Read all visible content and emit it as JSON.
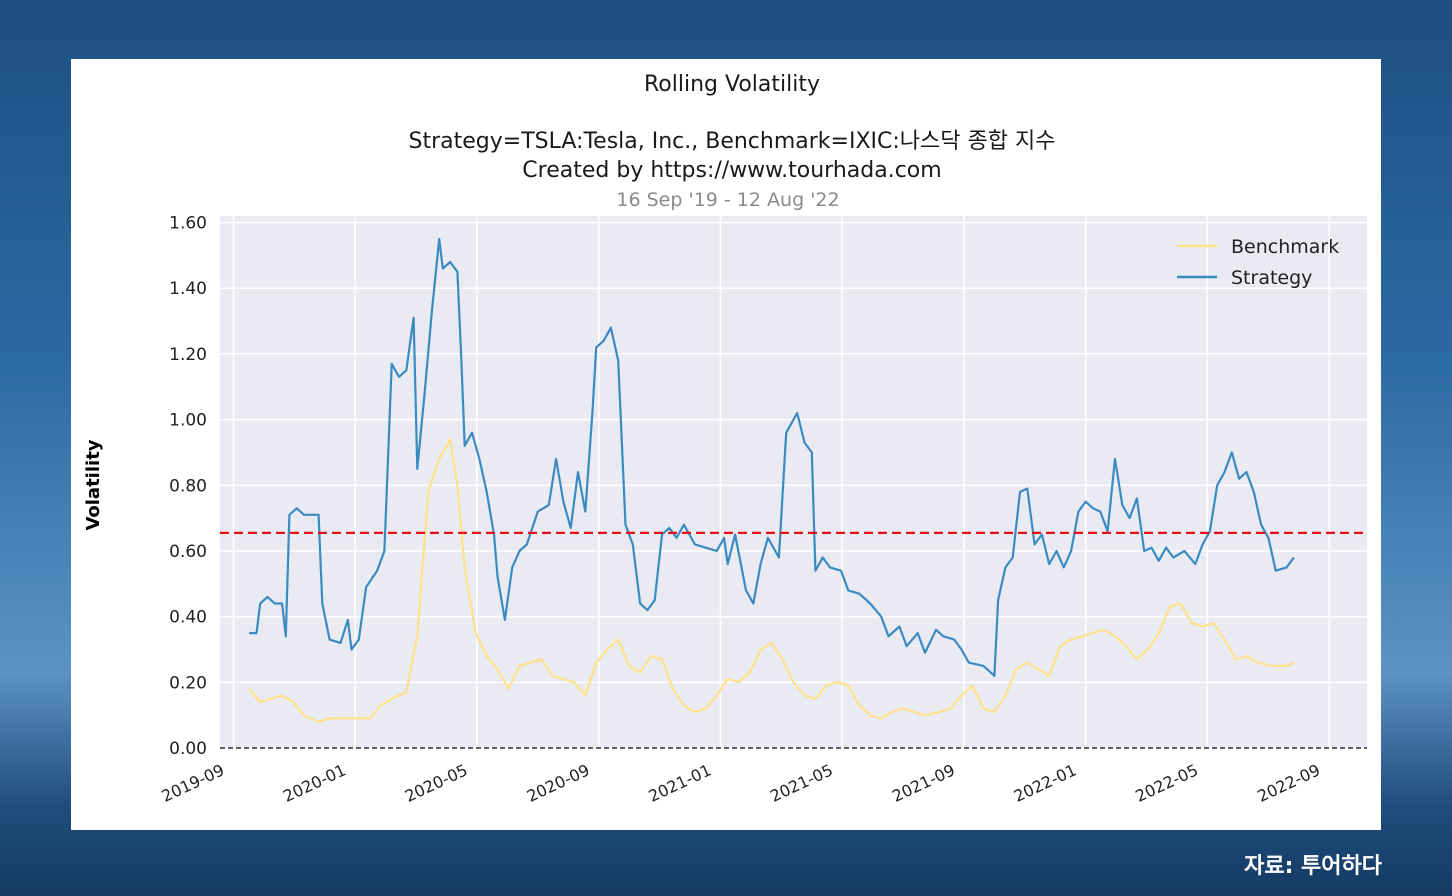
{
  "source_label": "자료: 투어하다",
  "colors": {
    "background_top": "#1d4f83",
    "panel": "#ffffff",
    "plot_bg": "#eaeaf2",
    "benchmark": "#fde18b",
    "strategy": "#3b8bc2",
    "mean_line": "#e8101a"
  },
  "chart_data": {
    "type": "line",
    "title": "Rolling Volatility",
    "subtitle_lines": [
      "Strategy=TSLA:Tesla, Inc., Benchmark=IXIC:나스닥 종합 지수",
      "Created by https://www.tourhada.com"
    ],
    "date_range": "16 Sep '19 - 12 Aug '22",
    "ylabel": "Volatility",
    "xlabel": "",
    "ylim": [
      0,
      1.62
    ],
    "xlim": [
      2019.63,
      2022.77
    ],
    "yticks": [
      "0.00",
      "0.20",
      "0.40",
      "0.60",
      "0.80",
      "1.00",
      "1.20",
      "1.40",
      "1.60"
    ],
    "xticks": [
      {
        "label": "2019-09",
        "x": 2019.667
      },
      {
        "label": "2020-01",
        "x": 2020.0
      },
      {
        "label": "2020-05",
        "x": 2020.333
      },
      {
        "label": "2020-09",
        "x": 2020.667
      },
      {
        "label": "2021-01",
        "x": 2021.0
      },
      {
        "label": "2021-05",
        "x": 2021.333
      },
      {
        "label": "2021-09",
        "x": 2021.667
      },
      {
        "label": "2022-01",
        "x": 2022.0
      },
      {
        "label": "2022-05",
        "x": 2022.333
      },
      {
        "label": "2022-09",
        "x": 2022.667
      }
    ],
    "mean_line": 0.655,
    "zero_line": 0.0,
    "legend": {
      "position": "top-right",
      "entries": [
        "Benchmark",
        "Strategy"
      ]
    },
    "series": [
      {
        "name": "Strategy",
        "points": [
          [
            2019.71,
            0.35
          ],
          [
            2019.73,
            0.35
          ],
          [
            2019.74,
            0.44
          ],
          [
            2019.76,
            0.46
          ],
          [
            2019.78,
            0.44
          ],
          [
            2019.8,
            0.44
          ],
          [
            2019.81,
            0.34
          ],
          [
            2019.82,
            0.71
          ],
          [
            2019.84,
            0.73
          ],
          [
            2019.86,
            0.71
          ],
          [
            2019.9,
            0.71
          ],
          [
            2019.91,
            0.44
          ],
          [
            2019.93,
            0.33
          ],
          [
            2019.96,
            0.32
          ],
          [
            2019.98,
            0.39
          ],
          [
            2019.99,
            0.3
          ],
          [
            2020.01,
            0.33
          ],
          [
            2020.03,
            0.49
          ],
          [
            2020.06,
            0.54
          ],
          [
            2020.08,
            0.6
          ],
          [
            2020.1,
            1.17
          ],
          [
            2020.12,
            1.13
          ],
          [
            2020.14,
            1.15
          ],
          [
            2020.16,
            1.31
          ],
          [
            2020.17,
            0.85
          ],
          [
            2020.19,
            1.08
          ],
          [
            2020.21,
            1.33
          ],
          [
            2020.23,
            1.55
          ],
          [
            2020.24,
            1.46
          ],
          [
            2020.26,
            1.48
          ],
          [
            2020.28,
            1.45
          ],
          [
            2020.29,
            1.2
          ],
          [
            2020.3,
            0.92
          ],
          [
            2020.32,
            0.96
          ],
          [
            2020.34,
            0.88
          ],
          [
            2020.36,
            0.78
          ],
          [
            2020.38,
            0.65
          ],
          [
            2020.39,
            0.52
          ],
          [
            2020.41,
            0.39
          ],
          [
            2020.43,
            0.55
          ],
          [
            2020.45,
            0.6
          ],
          [
            2020.47,
            0.62
          ],
          [
            2020.5,
            0.72
          ],
          [
            2020.53,
            0.74
          ],
          [
            2020.55,
            0.88
          ],
          [
            2020.57,
            0.75
          ],
          [
            2020.59,
            0.67
          ],
          [
            2020.61,
            0.84
          ],
          [
            2020.63,
            0.72
          ],
          [
            2020.65,
            1.03
          ],
          [
            2020.66,
            1.22
          ],
          [
            2020.68,
            1.24
          ],
          [
            2020.7,
            1.28
          ],
          [
            2020.72,
            1.18
          ],
          [
            2020.74,
            0.68
          ],
          [
            2020.76,
            0.62
          ],
          [
            2020.78,
            0.44
          ],
          [
            2020.8,
            0.42
          ],
          [
            2020.82,
            0.45
          ],
          [
            2020.84,
            0.65
          ],
          [
            2020.86,
            0.67
          ],
          [
            2020.88,
            0.64
          ],
          [
            2020.9,
            0.68
          ],
          [
            2020.93,
            0.62
          ],
          [
            2020.96,
            0.61
          ],
          [
            2020.99,
            0.6
          ],
          [
            2021.01,
            0.64
          ],
          [
            2021.02,
            0.56
          ],
          [
            2021.04,
            0.65
          ],
          [
            2021.07,
            0.48
          ],
          [
            2021.09,
            0.44
          ],
          [
            2021.11,
            0.56
          ],
          [
            2021.13,
            0.64
          ],
          [
            2021.16,
            0.58
          ],
          [
            2021.18,
            0.96
          ],
          [
            2021.21,
            1.02
          ],
          [
            2021.23,
            0.93
          ],
          [
            2021.25,
            0.9
          ],
          [
            2021.26,
            0.54
          ],
          [
            2021.28,
            0.58
          ],
          [
            2021.3,
            0.55
          ],
          [
            2021.33,
            0.54
          ],
          [
            2021.35,
            0.48
          ],
          [
            2021.38,
            0.47
          ],
          [
            2021.41,
            0.44
          ],
          [
            2021.44,
            0.4
          ],
          [
            2021.46,
            0.34
          ],
          [
            2021.49,
            0.37
          ],
          [
            2021.51,
            0.31
          ],
          [
            2021.54,
            0.35
          ],
          [
            2021.56,
            0.29
          ],
          [
            2021.59,
            0.36
          ],
          [
            2021.61,
            0.34
          ],
          [
            2021.64,
            0.33
          ],
          [
            2021.66,
            0.3
          ],
          [
            2021.68,
            0.26
          ],
          [
            2021.72,
            0.25
          ],
          [
            2021.75,
            0.22
          ],
          [
            2021.76,
            0.45
          ],
          [
            2021.78,
            0.55
          ],
          [
            2021.8,
            0.58
          ],
          [
            2021.82,
            0.78
          ],
          [
            2021.84,
            0.79
          ],
          [
            2021.86,
            0.62
          ],
          [
            2021.88,
            0.65
          ],
          [
            2021.9,
            0.56
          ],
          [
            2021.92,
            0.6
          ],
          [
            2021.94,
            0.55
          ],
          [
            2021.96,
            0.6
          ],
          [
            2021.98,
            0.72
          ],
          [
            2022.0,
            0.75
          ],
          [
            2022.02,
            0.73
          ],
          [
            2022.04,
            0.72
          ],
          [
            2022.06,
            0.66
          ],
          [
            2022.08,
            0.88
          ],
          [
            2022.1,
            0.74
          ],
          [
            2022.12,
            0.7
          ],
          [
            2022.14,
            0.76
          ],
          [
            2022.16,
            0.6
          ],
          [
            2022.18,
            0.61
          ],
          [
            2022.2,
            0.57
          ],
          [
            2022.22,
            0.61
          ],
          [
            2022.24,
            0.58
          ],
          [
            2022.27,
            0.6
          ],
          [
            2022.3,
            0.56
          ],
          [
            2022.32,
            0.62
          ],
          [
            2022.34,
            0.66
          ],
          [
            2022.36,
            0.8
          ],
          [
            2022.38,
            0.84
          ],
          [
            2022.4,
            0.9
          ],
          [
            2022.42,
            0.82
          ],
          [
            2022.44,
            0.84
          ],
          [
            2022.46,
            0.78
          ],
          [
            2022.48,
            0.68
          ],
          [
            2022.5,
            0.64
          ],
          [
            2022.52,
            0.54
          ],
          [
            2022.55,
            0.55
          ],
          [
            2022.57,
            0.58
          ]
        ]
      },
      {
        "name": "Benchmark",
        "points": [
          [
            2019.71,
            0.18
          ],
          [
            2019.74,
            0.14
          ],
          [
            2019.77,
            0.15
          ],
          [
            2019.8,
            0.16
          ],
          [
            2019.83,
            0.14
          ],
          [
            2019.86,
            0.1
          ],
          [
            2019.9,
            0.08
          ],
          [
            2019.93,
            0.09
          ],
          [
            2019.96,
            0.09
          ],
          [
            2020.0,
            0.09
          ],
          [
            2020.04,
            0.09
          ],
          [
            2020.07,
            0.13
          ],
          [
            2020.1,
            0.15
          ],
          [
            2020.14,
            0.17
          ],
          [
            2020.17,
            0.34
          ],
          [
            2020.2,
            0.78
          ],
          [
            2020.23,
            0.88
          ],
          [
            2020.26,
            0.94
          ],
          [
            2020.28,
            0.8
          ],
          [
            2020.3,
            0.55
          ],
          [
            2020.33,
            0.35
          ],
          [
            2020.36,
            0.28
          ],
          [
            2020.39,
            0.24
          ],
          [
            2020.42,
            0.18
          ],
          [
            2020.45,
            0.25
          ],
          [
            2020.48,
            0.26
          ],
          [
            2020.51,
            0.27
          ],
          [
            2020.54,
            0.22
          ],
          [
            2020.57,
            0.21
          ],
          [
            2020.6,
            0.2
          ],
          [
            2020.63,
            0.16
          ],
          [
            2020.66,
            0.26
          ],
          [
            2020.69,
            0.3
          ],
          [
            2020.72,
            0.33
          ],
          [
            2020.75,
            0.25
          ],
          [
            2020.78,
            0.23
          ],
          [
            2020.81,
            0.28
          ],
          [
            2020.84,
            0.27
          ],
          [
            2020.87,
            0.18
          ],
          [
            2020.9,
            0.13
          ],
          [
            2020.93,
            0.11
          ],
          [
            2020.96,
            0.12
          ],
          [
            2020.99,
            0.16
          ],
          [
            2021.02,
            0.21
          ],
          [
            2021.05,
            0.2
          ],
          [
            2021.08,
            0.23
          ],
          [
            2021.11,
            0.3
          ],
          [
            2021.14,
            0.32
          ],
          [
            2021.17,
            0.27
          ],
          [
            2021.2,
            0.2
          ],
          [
            2021.23,
            0.16
          ],
          [
            2021.26,
            0.15
          ],
          [
            2021.29,
            0.19
          ],
          [
            2021.32,
            0.2
          ],
          [
            2021.35,
            0.19
          ],
          [
            2021.38,
            0.13
          ],
          [
            2021.41,
            0.1
          ],
          [
            2021.44,
            0.09
          ],
          [
            2021.47,
            0.11
          ],
          [
            2021.5,
            0.12
          ],
          [
            2021.53,
            0.11
          ],
          [
            2021.56,
            0.1
          ],
          [
            2021.6,
            0.11
          ],
          [
            2021.63,
            0.12
          ],
          [
            2021.66,
            0.16
          ],
          [
            2021.69,
            0.19
          ],
          [
            2021.72,
            0.12
          ],
          [
            2021.75,
            0.11
          ],
          [
            2021.78,
            0.16
          ],
          [
            2021.81,
            0.24
          ],
          [
            2021.84,
            0.26
          ],
          [
            2021.87,
            0.24
          ],
          [
            2021.9,
            0.22
          ],
          [
            2021.93,
            0.31
          ],
          [
            2021.96,
            0.33
          ],
          [
            2021.99,
            0.34
          ],
          [
            2022.02,
            0.35
          ],
          [
            2022.05,
            0.36
          ],
          [
            2022.08,
            0.34
          ],
          [
            2022.11,
            0.31
          ],
          [
            2022.14,
            0.27
          ],
          [
            2022.17,
            0.3
          ],
          [
            2022.2,
            0.35
          ],
          [
            2022.23,
            0.43
          ],
          [
            2022.26,
            0.44
          ],
          [
            2022.29,
            0.38
          ],
          [
            2022.32,
            0.37
          ],
          [
            2022.35,
            0.38
          ],
          [
            2022.38,
            0.33
          ],
          [
            2022.41,
            0.27
          ],
          [
            2022.44,
            0.28
          ],
          [
            2022.47,
            0.26
          ],
          [
            2022.51,
            0.25
          ],
          [
            2022.55,
            0.25
          ],
          [
            2022.57,
            0.26
          ]
        ]
      }
    ]
  }
}
